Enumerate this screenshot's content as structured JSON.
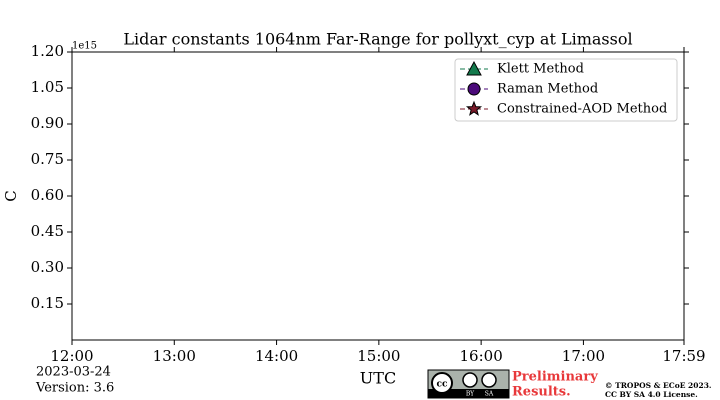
{
  "chart_data": {
    "type": "line",
    "title": "Lidar constants 1064nm Far-Range for pollyxt_cyp at Limassol",
    "ylabel": "C",
    "xlabel": "UTC",
    "y_offset_label": "1e15",
    "x": [],
    "series": [
      {
        "name": "Klett Method",
        "color": "#137a4c",
        "marker": "triangle",
        "values": []
      },
      {
        "name": "Raman Method",
        "color": "#4b0a7a",
        "marker": "circle",
        "values": []
      },
      {
        "name": "Constrained-AOD Method",
        "color": "#7a1a2a",
        "marker": "star",
        "values": []
      }
    ],
    "ylim": [
      0,
      1.2
    ],
    "yticks": [
      {
        "value": 0.15,
        "label": "0.15"
      },
      {
        "value": 0.3,
        "label": "0.30"
      },
      {
        "value": 0.45,
        "label": "0.45"
      },
      {
        "value": 0.6,
        "label": "0.60"
      },
      {
        "value": 0.75,
        "label": "0.75"
      },
      {
        "value": 0.9,
        "label": "0.90"
      },
      {
        "value": 1.05,
        "label": "1.05"
      },
      {
        "value": 1.2,
        "label": "1.20"
      }
    ],
    "xlim": [
      "12:00",
      "17:59"
    ],
    "xticks": [
      "12:00",
      "13:00",
      "14:00",
      "15:00",
      "16:00",
      "17:00",
      "17:59"
    ],
    "legend": "upper right",
    "date": "2023-03-24",
    "version": "Version: 3.6",
    "preliminary": [
      "Preliminary",
      "Results."
    ],
    "license_badge": [
      "BY",
      "SA"
    ],
    "copyright": [
      "© TROPOS & ECoE 2023.",
      "CC BY SA 4.0 License."
    ]
  }
}
